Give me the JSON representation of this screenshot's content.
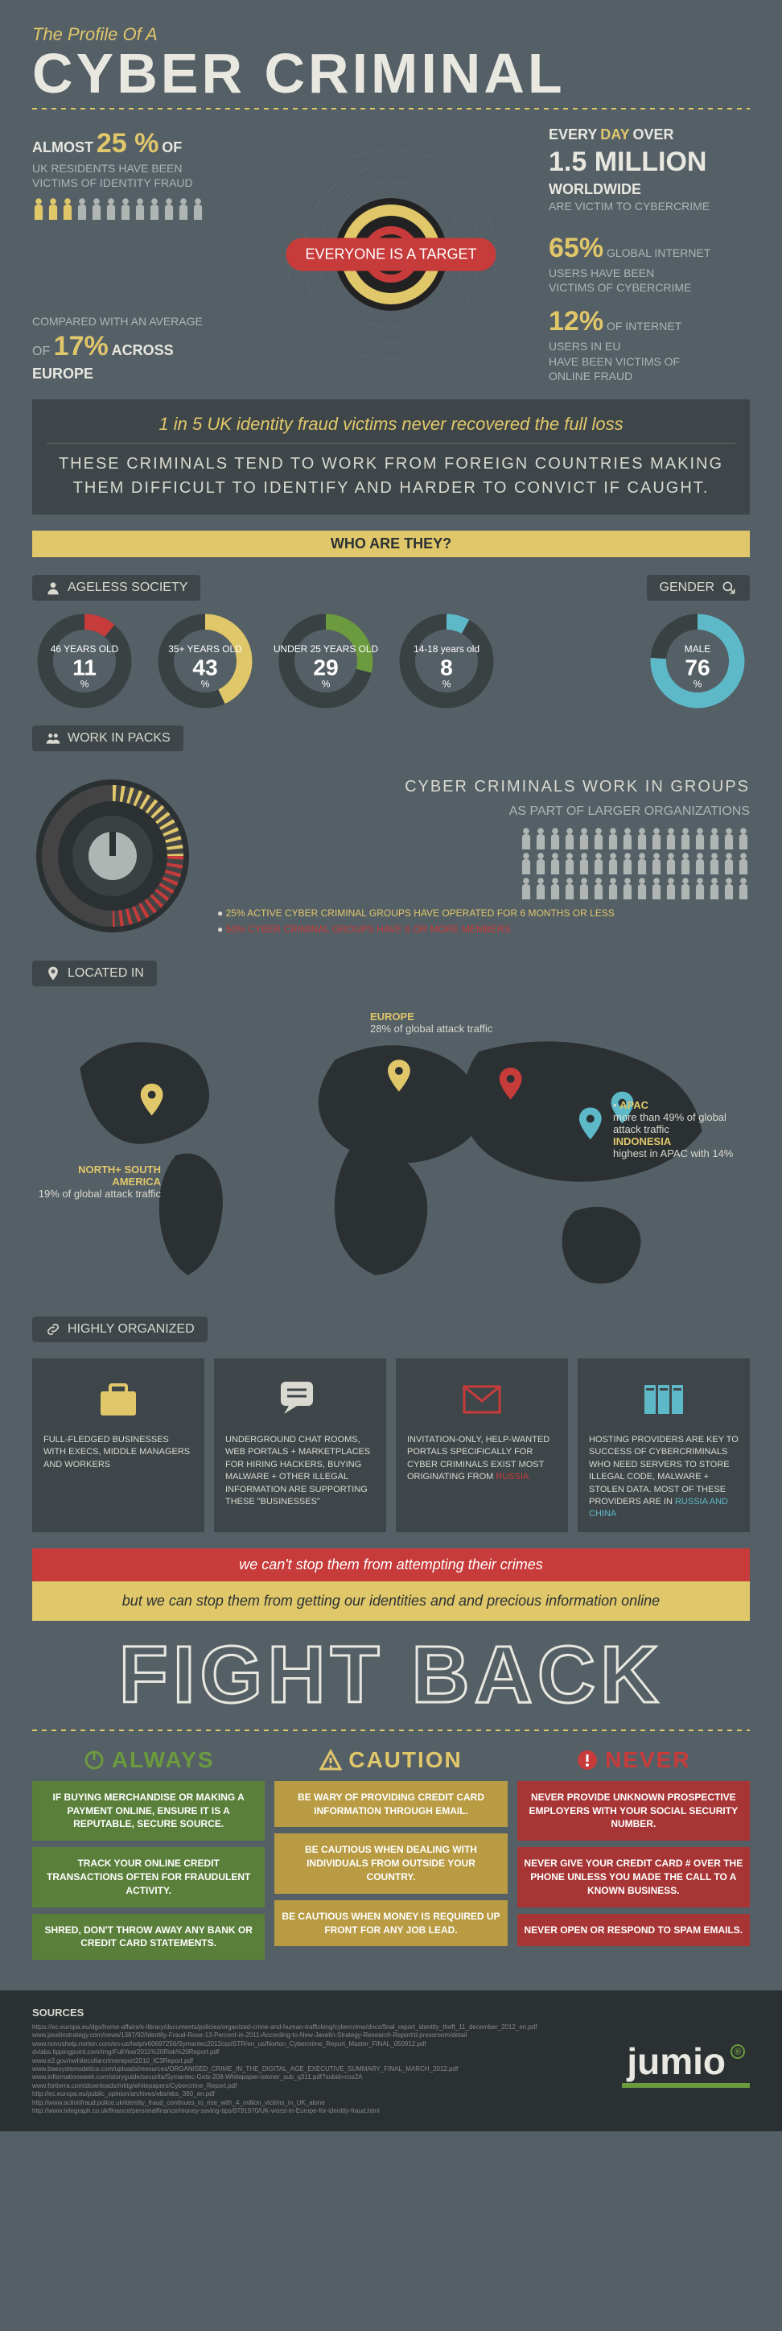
{
  "header": {
    "pretitle": "The Profile Of A",
    "title": "CYBER CRIMINAL"
  },
  "hero": {
    "pill": "EVERYONE IS A TARGET",
    "stat_uk": {
      "big": "25 %",
      "pre": "ALMOST",
      "post": "OF",
      "line2": "UK RESIDENTS HAVE BEEN",
      "line3": "VICTIMS OF IDENTITY FRAUD"
    },
    "stat_eu": {
      "pre": "COMPARED WITH AN AVERAGE",
      "big": "17%",
      "post": "ACROSS EUROPE"
    },
    "stat_daily": {
      "pre": "EVERY",
      "accent": "DAY",
      "post": "OVER",
      "big": "1.5 MILLION",
      "line2": "WORLDWIDE",
      "line3": "ARE VICTIM TO CYBERCRIME"
    },
    "stat_global": {
      "big": "65%",
      "line2": "GLOBAL INTERNET",
      "line3": "USERS HAVE BEEN",
      "line4": "VICTIMS OF CYBERCRIME"
    },
    "stat_euusers": {
      "big": "12%",
      "line2": "OF INTERNET",
      "line3": "USERS IN EU",
      "line4": "HAVE BEEN VICTIMS OF",
      "line5": "ONLINE FRAUD"
    },
    "radar_colors": {
      "ring1": "#e0c76a",
      "ring2": "#c83b3b",
      "center": "#222",
      "text": "#777"
    }
  },
  "banner1": {
    "gold": "1 in 5 UK identity fraud victims never recovered the full loss",
    "sub": "THESE CRIMINALS TEND TO WORK FROM FOREIGN COUNTRIES MAKING THEM DIFFICULT TO IDENTIFY AND HARDER TO CONVICT IF CAUGHT."
  },
  "who_title": "WHO ARE THEY?",
  "ageless": {
    "chip": "AGELESS SOCIETY",
    "gender_chip": "GENDER",
    "donuts": [
      {
        "label": "46 YEARS OLD",
        "value": 11,
        "color": "#c83b3b"
      },
      {
        "label": "35+ YEARS OLD",
        "value": 43,
        "color": "#e0c76a"
      },
      {
        "label": "UNDER 25 YEARS OLD",
        "value": 29,
        "color": "#6b9b3e"
      },
      {
        "label": "14-18 years old",
        "value": 8,
        "color": "#5db8c8"
      }
    ],
    "gender": {
      "label": "MALE",
      "value": 76,
      "color": "#5db8c8"
    }
  },
  "packs": {
    "chip": "WORK IN PACKS",
    "head": "CYBER CRIMINALS WORK IN GROUPS",
    "sub": "AS PART OF LARGER ORGANIZATIONS",
    "b1": "25% ACTIVE CYBER CRIMINAL GROUPS HAVE OPERATED FOR 6 MONTHS OR LESS",
    "b2": "50% CYBER CRIMINAL GROUPS HAVE 6 OR MORE MEMBERS",
    "dial": {
      "outer": "#2b3133",
      "tick_y": "#e0c76a",
      "tick_r": "#c83b3b",
      "knob": "#aeb5b3"
    }
  },
  "located": {
    "chip": "LOCATED IN",
    "map_color": "#2b3133",
    "pin_y": "#e0c76a",
    "pin_r": "#c83b3b",
    "pin_b": "#5db8c8",
    "notes": {
      "nasa": {
        "t": "NORTH+ SOUTH AMERICA",
        "d": "19% of global attack traffic"
      },
      "eu": {
        "t": "EUROPE",
        "d": "28% of global attack traffic"
      },
      "apac": {
        "t": "APAC",
        "d": "more than 49% of global attack traffic",
        "t2": "INDONESIA",
        "d2": "highest in APAC with 14%"
      }
    }
  },
  "org": {
    "chip": "HIGHLY ORGANIZED",
    "cards": [
      {
        "icon": "briefcase",
        "color": "#e0c76a",
        "text": "FULL-FLEDGED BUSINESSES WITH EXECS, MIDDLE MANAGERS AND WORKERS"
      },
      {
        "icon": "chat",
        "color": "#d9d9cf",
        "text": "UNDERGROUND CHAT ROOMS, WEB PORTALS + MARKETPLACES FOR HIRING HACKERS, BUYING MALWARE + OTHER ILLEGAL INFORMATION ARE SUPPORTING THESE \"BUSINESSES\""
      },
      {
        "icon": "mail",
        "color": "#c83b3b",
        "text": "INVITATION-ONLY, HELP-WANTED PORTALS SPECIFICALLY FOR CYBER CRIMINALS EXIST MOST ORIGINATING FROM ",
        "accent": "RUSSIA"
      },
      {
        "icon": "servers",
        "color": "#5db8c8",
        "text": "HOSTING PROVIDERS ARE KEY TO SUCCESS OF CYBERCRIMINALS WHO NEED SERVERS TO STORE ILLEGAL CODE, MALWARE + STOLEN DATA. MOST OF THESE PROVIDERS ARE IN ",
        "accent": "RUSSIA AND CHINA"
      }
    ]
  },
  "transition": {
    "cant": "we can't stop them from attempting their crimes",
    "can": "but we can stop them from getting our identities and and precious information online",
    "fight": "FIGHT BACK"
  },
  "acn": {
    "cols": [
      {
        "key": "always",
        "hdr": "ALWAYS",
        "icon": "power",
        "items": [
          "IF BUYING MERCHANDISE OR MAKING A PAYMENT ONLINE, ENSURE IT IS A REPUTABLE, SECURE SOURCE.",
          "TRACK YOUR ONLINE CREDIT TRANSACTIONS OFTEN FOR FRAUDULENT ACTIVITY.",
          "SHRED, DON'T THROW AWAY ANY BANK OR CREDIT CARD STATEMENTS."
        ]
      },
      {
        "key": "caution",
        "hdr": "CAUTION",
        "icon": "warn",
        "items": [
          "BE WARY OF PROVIDING CREDIT CARD INFORMATION THROUGH EMAIL.",
          "BE CAUTIOUS WHEN DEALING WITH INDIVIDUALS FROM OUTSIDE YOUR COUNTRY.",
          "BE CAUTIOUS WHEN MONEY IS REQUIRED UP FRONT FOR ANY JOB LEAD."
        ]
      },
      {
        "key": "never",
        "hdr": "NEVER",
        "icon": "bang",
        "items": [
          "NEVER PROVIDE UNKNOWN PROSPECTIVE EMPLOYERS WITH YOUR SOCIAL SECURITY NUMBER.",
          "NEVER GIVE YOUR CREDIT CARD # OVER THE PHONE UNLESS YOU MADE THE CALL TO A KNOWN BUSINESS.",
          "NEVER OPEN OR RESPOND TO SPAM EMAILS."
        ]
      }
    ]
  },
  "footer": {
    "sources_title": "SOURCES",
    "sources": [
      "https://ec.europa.eu/dgs/home-affairs/e-library/documents/policies/organized-crime-and-human-trafficking/cybercrime/docs/final_report_identity_theft_11_december_2012_en.pdf",
      "www.javelinstrategy.com/news/1387/92/Identity-Fraud-Rose-13-Percent-in-2011-According-to-New-Javelin-Strategy-Research-Report/d.pressroom/detail",
      "www.novoshelp.norton.com/en-us/help/v60697256/Symantec2012cssISTR/en_us/Norton_Cybercrime_Report_Master_FINAL_050912.pdf",
      "dvlabs.tippingpoint.com/img/FullYear2011%20Risk%20Report.pdf",
      "www.e2.gov/nwhitecollarcrimereport2010_IC3Report.pdf",
      "www.baesystemsdetica.com/uploads/resources/ORGANISED_CRIME_IN_THE_DIGITAL_AGE_EXECUTIVE_SUMMARY_FINAL_MARCH_2012.pdf",
      "www.informationweek.com/storyguide/securita/Symantec-Gets-208-Whitepaper-istoner_sub_q311.pdf?subid=cos2A",
      "www.fortierra.com/downloads/mktg/whitepapers/Cybercrime_Report.pdf",
      "http://ec.europa.eu/public_opinion/archives/ebs/ebs_390_en.pdf",
      "http://www.actionfraud.police.uk/identity_fraud_continues_to_rise_with_4_million_victims_in_UK_alone",
      "http://www.telegraph.co.uk/finance/personalfinance/money-saving-tips/9791970/UK-worst-in-Europe-for-identity-fraud.html"
    ],
    "logo": "jumio"
  }
}
